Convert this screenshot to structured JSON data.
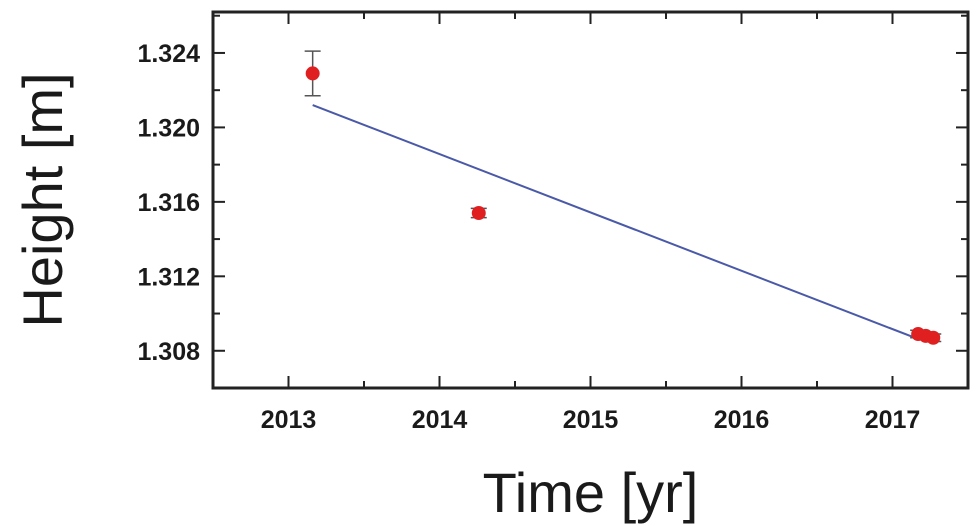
{
  "chart_data": {
    "type": "scatter",
    "title": "",
    "xlabel": "Time [yr]",
    "ylabel": "Height [m]",
    "xlim": [
      2012.5,
      2017.5
    ],
    "ylim": [
      1.306,
      1.3262
    ],
    "x_ticks": [
      2013,
      2014,
      2015,
      2016,
      2017
    ],
    "x_tick_labels": [
      "2013",
      "2014",
      "2015",
      "2016",
      "2017"
    ],
    "y_ticks": [
      1.308,
      1.312,
      1.316,
      1.32,
      1.324
    ],
    "y_tick_labels": [
      "1.308",
      "1.312",
      "1.316",
      "1.320",
      "1.324"
    ],
    "grid": false,
    "legend": "none",
    "points": [
      {
        "x": 2013.16,
        "y": 1.3229,
        "err": 0.0012
      },
      {
        "x": 2014.26,
        "y": 1.3154,
        "err": 0.00025
      },
      {
        "x": 2017.17,
        "y": 1.3089,
        "err": 0.0002
      },
      {
        "x": 2017.22,
        "y": 1.3088,
        "err": 0.0002
      },
      {
        "x": 2017.27,
        "y": 1.3087,
        "err": 0.0002
      }
    ],
    "fit_line": {
      "x": [
        2013.16,
        2017.18
      ],
      "y": [
        1.3212,
        1.3086
      ]
    },
    "colors": {
      "points": "#e02020",
      "fit": "#4a5aa8",
      "axes": "#222222",
      "error_bars": "#555555"
    }
  }
}
